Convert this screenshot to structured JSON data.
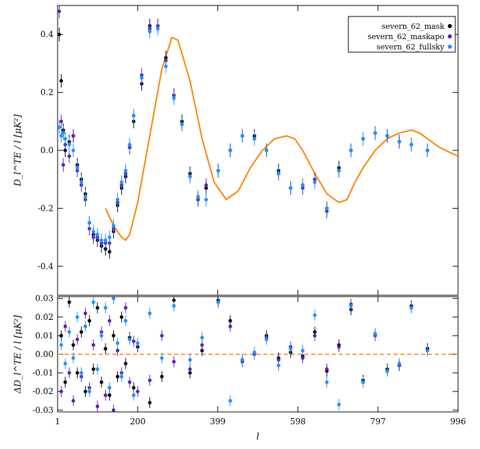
{
  "chart_data": {
    "type": "scatter",
    "x_range": [
      1,
      996
    ],
    "x_ticks": [
      1,
      200,
      399,
      598,
      797,
      996
    ],
    "x_tick_labels": [
      "1",
      "200",
      "399",
      "598",
      "797",
      "996"
    ],
    "xlabel": "l",
    "colors": {
      "severn_62_mask": "#000000",
      "severn_62_maskapo": "#5b1fb0",
      "severn_62_fullsky": "#1e90ff",
      "model": "#ff8000",
      "zero_line": "#ff8000"
    },
    "legend": {
      "placement": "top-right",
      "entries": [
        "severn_62_mask",
        "severn_62_maskapo",
        "severn_62_fullsky"
      ]
    },
    "panels": [
      {
        "name": "top",
        "ylabel": "D_l^TE / l [μK²]",
        "ylim": [
          -0.5,
          0.5
        ],
        "y_ticks": [
          -0.4,
          -0.2,
          0.0,
          0.2,
          0.4
        ],
        "y_tick_labels": [
          "-0.4",
          "-0.2",
          "0.0",
          "0.2",
          "0.4"
        ],
        "model_curve": {
          "x": [
            120,
            140,
            160,
            170,
            180,
            200,
            230,
            260,
            285,
            300,
            330,
            360,
            390,
            420,
            450,
            480,
            510,
            540,
            570,
            590,
            610,
            640,
            670,
            700,
            720,
            740,
            760,
            790,
            820,
            850,
            880,
            900,
            920,
            950,
            980,
            996
          ],
          "y": [
            -0.2,
            -0.26,
            -0.3,
            -0.31,
            -0.29,
            -0.18,
            0.05,
            0.28,
            0.39,
            0.38,
            0.24,
            0.04,
            -0.11,
            -0.17,
            -0.14,
            -0.06,
            0.0,
            0.04,
            0.05,
            0.04,
            0.0,
            -0.08,
            -0.15,
            -0.18,
            -0.17,
            -0.11,
            -0.06,
            0.0,
            0.04,
            0.06,
            0.07,
            0.06,
            0.04,
            0.01,
            -0.01,
            -0.02
          ]
        },
        "series": [
          {
            "name": "severn_62_mask",
            "x": [
              5,
              10,
              15,
              20,
              30,
              40,
              50,
              60,
              70,
              80,
              90,
              100,
              110,
              120,
              130,
              140,
              150,
              160,
              170,
              180,
              190,
              210,
              230,
              250,
              270,
              290,
              310,
              330,
              350,
              370,
              400,
              430,
              460,
              490,
              520,
              550,
              580,
              610,
              640,
              670,
              700,
              730,
              760,
              790,
              820,
              850,
              880,
              920
            ],
            "y": [
              0.4,
              0.24,
              0.07,
              0.0,
              0.03,
              0.05,
              -0.05,
              -0.1,
              -0.15,
              -0.25,
              -0.29,
              -0.31,
              -0.33,
              -0.34,
              -0.35,
              -0.28,
              -0.19,
              -0.13,
              -0.09,
              0.01,
              0.1,
              0.23,
              0.43,
              0.43,
              0.32,
              0.19,
              0.1,
              -0.08,
              -0.17,
              -0.13,
              -0.07,
              0.0,
              0.05,
              0.05,
              0.0,
              -0.07,
              -0.13,
              -0.12,
              -0.1,
              -0.2,
              -0.06,
              0.0,
              0.04,
              0.06,
              0.05,
              0.03,
              0.02,
              0.0
            ]
          },
          {
            "name": "severn_62_maskapo",
            "x": [
              5,
              10,
              15,
              20,
              30,
              40,
              50,
              60,
              70,
              80,
              90,
              100,
              110,
              120,
              130,
              140,
              150,
              160,
              170,
              180,
              190,
              210,
              230,
              250,
              270,
              290,
              310,
              330,
              350,
              370,
              400,
              430,
              460,
              490,
              520,
              550,
              580,
              610,
              640,
              670,
              700,
              730,
              760,
              790,
              820,
              850,
              880,
              920
            ],
            "y": [
              0.48,
              0.1,
              -0.05,
              0.02,
              -0.02,
              0.05,
              -0.07,
              -0.12,
              -0.17,
              -0.27,
              -0.3,
              -0.3,
              -0.32,
              -0.32,
              -0.32,
              -0.27,
              -0.18,
              -0.12,
              -0.08,
              0.01,
              0.12,
              0.26,
              0.42,
              0.43,
              0.31,
              0.19,
              0.09,
              -0.09,
              -0.17,
              -0.12,
              -0.07,
              0.0,
              0.05,
              0.04,
              0.0,
              -0.08,
              -0.13,
              -0.13,
              -0.1,
              -0.21,
              -0.07,
              0.0,
              0.04,
              0.06,
              0.05,
              0.03,
              0.02,
              0.0
            ]
          },
          {
            "name": "severn_62_fullsky",
            "x": [
              5,
              10,
              15,
              20,
              30,
              40,
              50,
              60,
              70,
              80,
              90,
              100,
              110,
              120,
              130,
              140,
              150,
              160,
              170,
              180,
              190,
              210,
              230,
              250,
              270,
              290,
              310,
              330,
              350,
              370,
              400,
              430,
              460,
              490,
              520,
              550,
              580,
              610,
              640,
              670,
              700,
              730,
              760,
              790,
              820,
              850,
              880,
              920
            ],
            "y": [
              0.08,
              0.05,
              0.06,
              0.04,
              0.02,
              0.0,
              -0.06,
              -0.11,
              -0.16,
              -0.25,
              -0.28,
              -0.29,
              -0.31,
              -0.31,
              -0.3,
              -0.26,
              -0.17,
              -0.11,
              -0.07,
              0.02,
              0.12,
              0.25,
              0.41,
              0.42,
              0.29,
              0.18,
              0.09,
              -0.09,
              -0.16,
              -0.17,
              -0.07,
              0.0,
              0.05,
              0.04,
              0.0,
              -0.08,
              -0.13,
              -0.12,
              -0.11,
              -0.2,
              -0.07,
              0.0,
              0.04,
              0.06,
              0.05,
              0.03,
              0.02,
              0.0
            ]
          }
        ]
      },
      {
        "name": "bottom",
        "ylabel": "ΔD_l^TE / l [μK²]",
        "ylim": [
          -0.031,
          0.031
        ],
        "y_ticks": [
          -0.03,
          -0.02,
          -0.01,
          0.0,
          0.01,
          0.02,
          0.03
        ],
        "y_tick_labels": [
          "-0.03",
          "-0.02",
          "-0.01",
          "0.00",
          "0.01",
          "0.02",
          "0.03"
        ],
        "zero_line": 0.0,
        "series": [
          {
            "name": "severn_62_mask",
            "x": [
              10,
              20,
              30,
              40,
              50,
              60,
              70,
              80,
              90,
              100,
              110,
              120,
              130,
              140,
              150,
              160,
              170,
              180,
              190,
              200,
              230,
              260,
              290,
              330,
              360,
              400,
              430,
              460,
              490,
              520,
              550,
              580,
              610,
              640,
              670,
              700,
              730,
              760,
              790,
              820,
              850,
              880,
              920
            ],
            "y": [
              0.01,
              -0.015,
              0.028,
              0.005,
              -0.01,
              0.012,
              -0.02,
              0.018,
              -0.008,
              0.025,
              -0.015,
              0.003,
              -0.022,
              0.01,
              -0.012,
              0.02,
              -0.005,
              0.009,
              -0.018,
              0.004,
              -0.026,
              -0.012,
              0.029,
              -0.01,
              0.002,
              0.029,
              0.018,
              -0.003,
              0.001,
              0.01,
              -0.002,
              0.001,
              -0.001,
              0.012,
              -0.009,
              0.005,
              0.024,
              -0.014,
              0.011,
              -0.008,
              -0.006,
              0.026,
              0.003
            ]
          },
          {
            "name": "severn_62_maskapo",
            "x": [
              10,
              20,
              30,
              40,
              50,
              60,
              70,
              80,
              90,
              100,
              110,
              120,
              130,
              140,
              150,
              160,
              170,
              180,
              190,
              200,
              230,
              260,
              290,
              330,
              360,
              400,
              430,
              460,
              490,
              520,
              550,
              580,
              610,
              640,
              670,
              700,
              730,
              760,
              790,
              820,
              850,
              880,
              920
            ],
            "y": [
              -0.02,
              0.015,
              -0.01,
              -0.025,
              0.008,
              -0.012,
              0.022,
              -0.018,
              0.005,
              -0.028,
              0.012,
              -0.022,
              0.018,
              -0.03,
              0.002,
              -0.01,
              0.025,
              -0.015,
              0.007,
              -0.02,
              -0.014,
              0.01,
              -0.004,
              -0.008,
              0.005,
              0.028,
              0.015,
              -0.004,
              0.0,
              0.009,
              -0.003,
              0.004,
              -0.002,
              0.01,
              -0.008,
              0.004,
              0.027,
              -0.015,
              0.01,
              -0.009,
              -0.006,
              0.025,
              0.002
            ]
          },
          {
            "name": "severn_62_fullsky",
            "x": [
              10,
              20,
              30,
              40,
              50,
              60,
              70,
              80,
              90,
              100,
              110,
              120,
              130,
              140,
              150,
              160,
              170,
              180,
              190,
              200,
              230,
              260,
              290,
              330,
              360,
              400,
              430,
              460,
              490,
              520,
              550,
              580,
              610,
              640,
              670,
              700,
              730,
              760,
              790,
              820,
              850,
              880,
              920
            ],
            "y": [
              0.005,
              -0.005,
              0.012,
              -0.002,
              0.02,
              -0.01,
              0.015,
              -0.02,
              0.028,
              -0.008,
              0.01,
              0.025,
              -0.018,
              0.03,
              0.006,
              -0.012,
              0.018,
              0.008,
              -0.022,
              0.006,
              0.022,
              -0.002,
              0.026,
              -0.003,
              0.009,
              0.028,
              -0.025,
              -0.003,
              0.001,
              0.008,
              -0.006,
              0.003,
              0.002,
              0.021,
              -0.015,
              -0.027,
              0.026,
              -0.015,
              0.011,
              -0.009,
              -0.005,
              0.025,
              0.002
            ]
          }
        ]
      }
    ]
  }
}
